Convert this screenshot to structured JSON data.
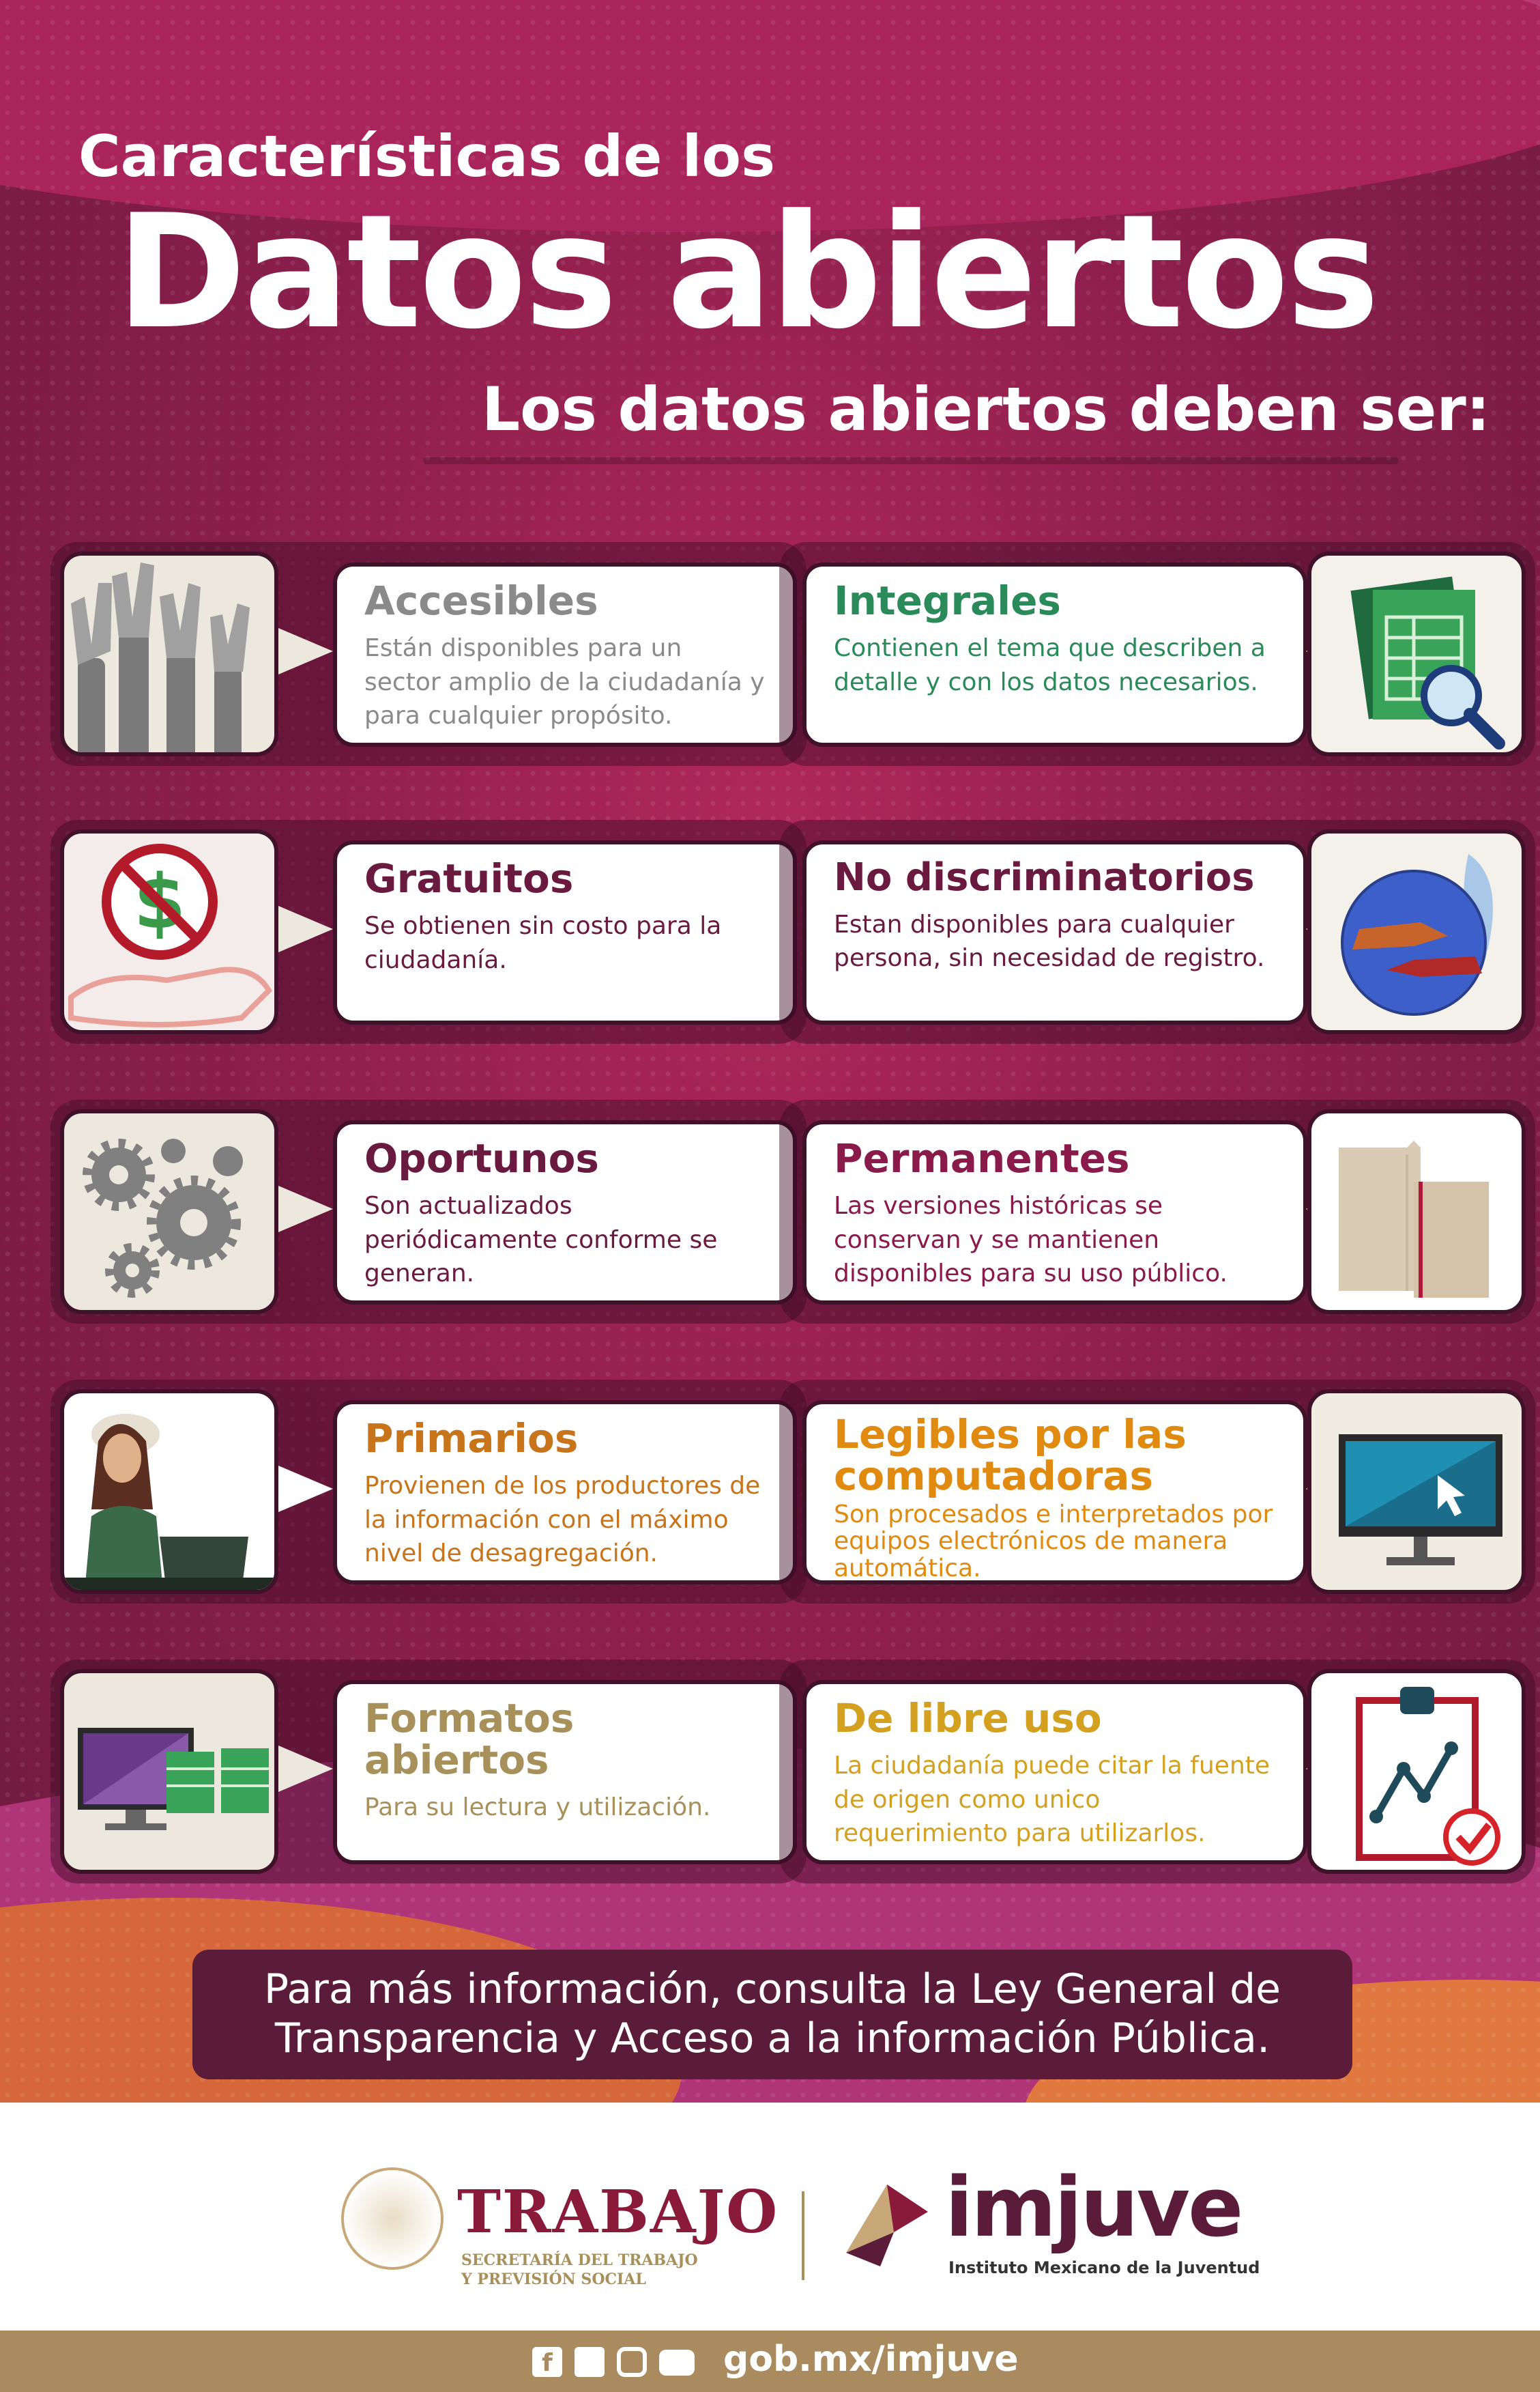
{
  "header": {
    "small_title": "Características de los",
    "big_title": "Datos abiertos",
    "subtitle": "Los datos abiertos deben ser:"
  },
  "cards": [
    {
      "title": "Accesibles",
      "desc": "Están disponibles para un sector amplio de la ciudadanía y para cualquier propósito.",
      "icon": "hands-raised-icon",
      "title_color": "#8a8a8a"
    },
    {
      "title": "Integrales",
      "desc": "Contienen el tema que describen a detalle y con los datos necesarios.",
      "icon": "spreadsheet-magnifier-icon",
      "title_color": "#2a8a5a"
    },
    {
      "title": "Gratuitos",
      "desc": "Se obtienen sin costo para la ciudadanía.",
      "icon": "no-money-hand-icon",
      "title_color": "#6a1a3e"
    },
    {
      "title": "No discriminatorios",
      "desc": "Estan disponibles para cualquier persona, sin necesidad de registro.",
      "icon": "globe-hands-icon",
      "title_color": "#6a1a3e"
    },
    {
      "title": "Oportunos",
      "desc": "Son actualizados periódicamente conforme se generan.",
      "icon": "gears-icon",
      "title_color": "#6a1a3e"
    },
    {
      "title": "Permanentes",
      "desc": "Las versiones históricas se conservan y se mantienen disponibles para su uso público.",
      "icon": "folders-icon",
      "title_color": "#8a1a4a"
    },
    {
      "title": "Primarios",
      "desc": "Provienen de los productores de la información con el  máximo nivel de desagregación.",
      "icon": "woman-laptop-icon",
      "title_color": "#c8741a"
    },
    {
      "title": "Legibles por las computadoras",
      "desc": "Son procesados e interpretados por equipos electrónicos de manera automática.",
      "icon": "monitor-cursor-icon",
      "title_color": "#e08a10"
    },
    {
      "title": "Formatos abiertos",
      "desc": "Para su lectura y utilización.",
      "icon": "monitor-spreadsheets-icon",
      "title_color": "#a8905a"
    },
    {
      "title": "De libre uso",
      "desc": "La ciudadanía puede citar la fuente de origen como unico requerimiento para utilizarlos.",
      "icon": "clipboard-chart-icon",
      "title_color": "#d4a020"
    }
  ],
  "footer_message": "Para más información, consulta la Ley General de Transparencia y Acceso a la información Pública.",
  "logos": {
    "trabajo_title": "TRABAJO",
    "trabajo_sub1": "SECRETARÍA DEL TRABAJO",
    "trabajo_sub2": "Y PREVISIÓN SOCIAL",
    "imjuve_title": "imjuve",
    "imjuve_sub": "Instituto Mexicano de la Juventud"
  },
  "social": {
    "url": "gob.mx/imjuve",
    "icons": [
      "facebook-icon",
      "twitter-icon",
      "instagram-icon",
      "youtube-icon"
    ]
  }
}
